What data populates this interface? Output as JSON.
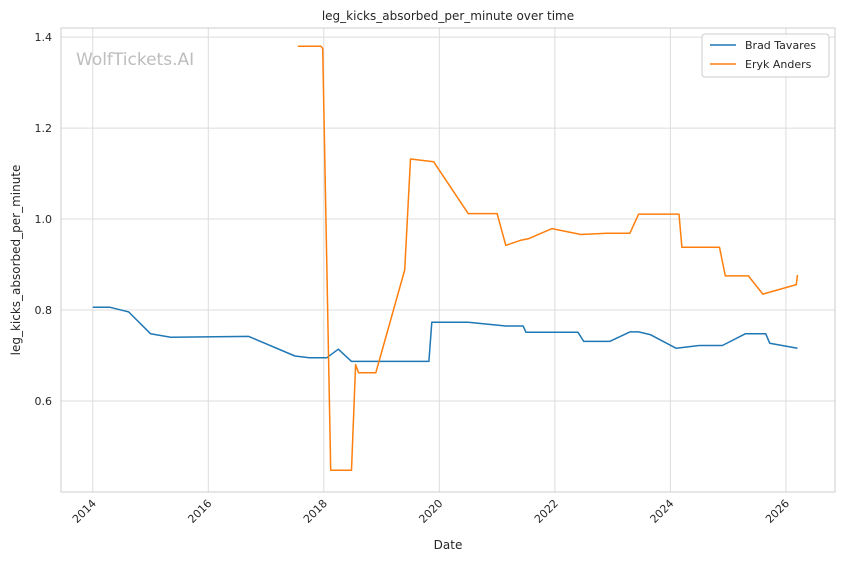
{
  "chart_data": {
    "type": "line",
    "title": "leg_kicks_absorbed_per_minute over time",
    "xlabel": "Date",
    "ylabel": "leg_kicks_absorbed_per_minute",
    "watermark": "WolfTickets.AI",
    "xlim": [
      2013.45,
      2026.85
    ],
    "ylim": [
      0.4,
      1.42
    ],
    "x_ticks": [
      2014,
      2016,
      2018,
      2020,
      2022,
      2024,
      2026
    ],
    "x_tick_labels": [
      "2014",
      "2016",
      "2018",
      "2020",
      "2022",
      "2024",
      "2026"
    ],
    "y_ticks": [
      0.6,
      0.8,
      1.0,
      1.2,
      1.4
    ],
    "y_tick_labels": [
      "0.6",
      "0.8",
      "1.0",
      "1.2",
      "1.4"
    ],
    "grid": true,
    "legend_position": "top-right",
    "series": [
      {
        "name": "Brad Tavares",
        "color": "#1f77b4",
        "x": [
          2014.0,
          2014.3,
          2014.62,
          2015.0,
          2015.35,
          2016.7,
          2017.5,
          2017.75,
          2018.05,
          2018.25,
          2018.48,
          2019.5,
          2019.82,
          2019.87,
          2020.5,
          2021.15,
          2021.45,
          2021.5,
          2022.4,
          2022.5,
          2022.95,
          2023.3,
          2023.45,
          2023.65,
          2024.1,
          2024.5,
          2024.9,
          2025.3,
          2025.65,
          2025.72,
          2026.2
        ],
        "y": [
          0.806,
          0.806,
          0.796,
          0.748,
          0.74,
          0.742,
          0.699,
          0.695,
          0.695,
          0.714,
          0.687,
          0.687,
          0.687,
          0.773,
          0.773,
          0.765,
          0.765,
          0.751,
          0.751,
          0.731,
          0.731,
          0.752,
          0.752,
          0.746,
          0.716,
          0.722,
          0.722,
          0.748,
          0.748,
          0.727,
          0.716
        ]
      },
      {
        "name": "Eryk Anders",
        "color": "#ff7f0e",
        "x": [
          2017.55,
          2017.95,
          2017.98,
          2018.12,
          2018.48,
          2018.55,
          2018.6,
          2018.9,
          2019.4,
          2019.5,
          2019.9,
          2020.5,
          2021.0,
          2021.15,
          2021.4,
          2021.55,
          2021.95,
          2022.45,
          2022.9,
          2023.3,
          2023.45,
          2024.15,
          2024.2,
          2024.85,
          2024.95,
          2025.35,
          2025.6,
          2026.18,
          2026.2
        ],
        "y": [
          1.38,
          1.38,
          1.375,
          0.448,
          0.448,
          0.68,
          0.662,
          0.662,
          0.888,
          1.132,
          1.126,
          1.012,
          1.012,
          0.942,
          0.953,
          0.957,
          0.979,
          0.966,
          0.969,
          0.969,
          1.011,
          1.011,
          0.938,
          0.938,
          0.875,
          0.875,
          0.835,
          0.856,
          0.877
        ]
      }
    ]
  }
}
